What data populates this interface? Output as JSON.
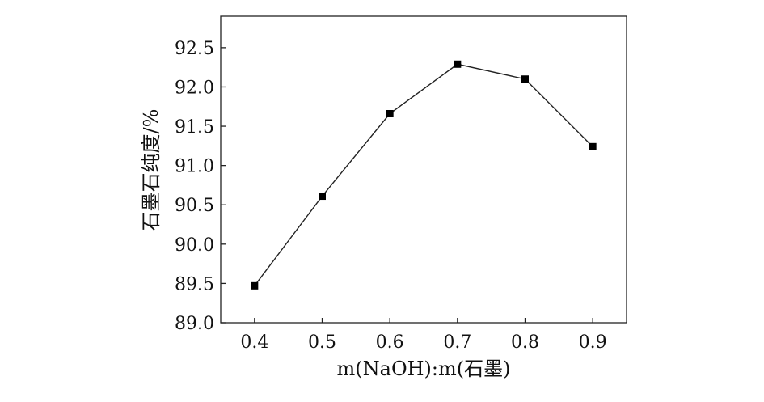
{
  "chart_data": {
    "type": "line",
    "x": [
      0.4,
      0.5,
      0.6,
      0.7,
      0.8,
      0.9
    ],
    "x_tick_labels": [
      "0.4",
      "0.5",
      "0.6",
      "0.7",
      "0.8",
      "0.9"
    ],
    "series": [
      {
        "values": [
          89.47,
          90.61,
          91.66,
          92.29,
          92.1,
          91.24
        ]
      }
    ],
    "y_ticks": [
      89.0,
      89.5,
      90.0,
      90.5,
      91.0,
      91.5,
      92.0,
      92.5
    ],
    "y_tick_labels": [
      "89.0",
      "89.5",
      "90.0",
      "90.5",
      "91.0",
      "91.5",
      "92.0",
      "92.5"
    ],
    "xlabel": "m(NaOH):m(石墨)",
    "ylabel": "石墨石纯度/%",
    "xlim": [
      0.35,
      0.95
    ],
    "ylim": [
      89.0,
      92.9
    ],
    "grid": false,
    "marker": "square",
    "colors": {
      "line": "#222222",
      "marker": "#000000",
      "text": "#111111"
    }
  }
}
